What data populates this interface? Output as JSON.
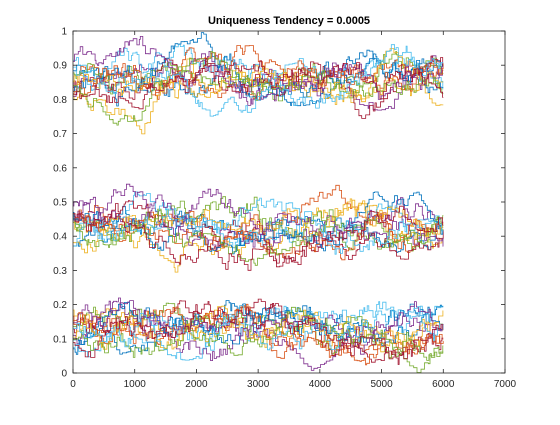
{
  "chart_data": {
    "type": "line",
    "title": "Uniqueness Tendency = 0.0005",
    "xlabel": "",
    "ylabel": "",
    "xlim": [
      0,
      7000
    ],
    "ylim": [
      0,
      1
    ],
    "x_ticks": [
      0,
      1000,
      2000,
      3000,
      4000,
      5000,
      6000,
      7000
    ],
    "x_tick_labels": [
      "0",
      "1000",
      "2000",
      "3000",
      "4000",
      "5000",
      "6000",
      "7000"
    ],
    "y_ticks": [
      0,
      0.1,
      0.2,
      0.3,
      0.4,
      0.5,
      0.6,
      0.7,
      0.8,
      0.9,
      1
    ],
    "y_tick_labels": [
      "0",
      "0.1",
      "0.2",
      "0.3",
      "0.4",
      "0.5",
      "0.6",
      "0.7",
      "0.8",
      "0.9",
      "1"
    ],
    "grid": false,
    "legend": "none",
    "x_end": 6000,
    "series_style": "stairs",
    "series_colors": [
      "#0072BD",
      "#D95319",
      "#EDB120",
      "#7E2F8E",
      "#77AC30",
      "#4DBEEE",
      "#A2142F"
    ],
    "bands": [
      {
        "series_count": 14,
        "approx_mean": 0.86,
        "approx_min": 0.69,
        "approx_max": 1.0
      },
      {
        "series_count": 14,
        "approx_mean": 0.43,
        "approx_min": 0.27,
        "approx_max": 0.63
      },
      {
        "series_count": 14,
        "approx_mean": 0.13,
        "approx_min": 0.0,
        "approx_max": 0.32
      }
    ]
  }
}
